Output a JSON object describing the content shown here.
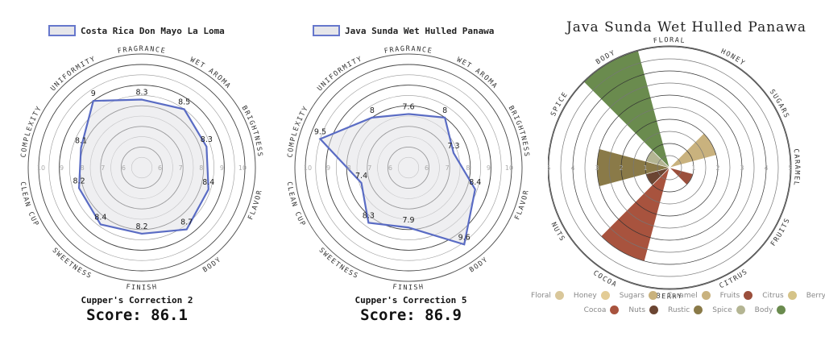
{
  "chart_data": [
    {
      "type": "radar",
      "series_name": "Costa Rica Don Mayo La Loma",
      "categories": [
        "Fragrance",
        "Wet Aroma",
        "Brightness",
        "Flavor",
        "Body",
        "Finish",
        "Sweetness",
        "Clean Cup",
        "Complexity",
        "Uniformity"
      ],
      "values": [
        8.3,
        8.5,
        8.3,
        8.4,
        8.7,
        8.2,
        8.4,
        8.2,
        8.1,
        9
      ],
      "value_labels": [
        "8.3",
        "8.5",
        "8.3",
        "8.4",
        "8.7",
        "8.2",
        "8.4",
        "8.2",
        "8.1",
        "9"
      ],
      "rlim": [
        5,
        10
      ],
      "tick_labels": [
        "6",
        "7",
        "8",
        "9",
        "10"
      ],
      "footer": "Cupper's Correction 2",
      "score": "Score: 86.1"
    },
    {
      "type": "radar",
      "series_name": "Java Sunda Wet Hulled Panawa",
      "categories": [
        "Fragrance",
        "Wet Aroma",
        "Brightness",
        "Flavor",
        "Body",
        "Finish",
        "Sweetness",
        "Clean Cup",
        "Complexity",
        "Uniformity"
      ],
      "values": [
        7.6,
        8,
        7.3,
        8.4,
        9.6,
        7.9,
        8.3,
        7.4,
        9.5,
        8
      ],
      "value_labels": [
        "7.6",
        "8",
        "7.3",
        "8.4",
        "9.6",
        "7.9",
        "8.3",
        "7.4",
        "9.5",
        "8"
      ],
      "rlim": [
        5,
        10
      ],
      "tick_labels": [
        "6",
        "7",
        "8",
        "9",
        "10"
      ],
      "footer": "Cupper's Correction 5",
      "score": "Score: 86.9"
    },
    {
      "type": "polar-area",
      "title": "Java Sunda Wet Hulled Panawa",
      "categories": [
        "Floral",
        "Honey",
        "Sugars",
        "Caramel",
        "Fruits",
        "Citrus",
        "Berry",
        "Cocoa",
        "Nuts",
        "Rustic",
        "Spice",
        "Body"
      ],
      "values": [
        0,
        0,
        2,
        0,
        1,
        0,
        0,
        4,
        1,
        3,
        1,
        5
      ],
      "rlim": [
        0,
        5
      ],
      "tick_labels": [
        "1",
        "2",
        "3",
        "4",
        "5"
      ],
      "colors": [
        "#d9c79a",
        "#e3cc96",
        "#c9b27e",
        "#c9b27e",
        "#9b4f3c",
        "#d5c388",
        "#55578a",
        "#a8533e",
        "#6b4532",
        "#8a7a48",
        "#b4b593",
        "#6a8b4e"
      ]
    }
  ]
}
